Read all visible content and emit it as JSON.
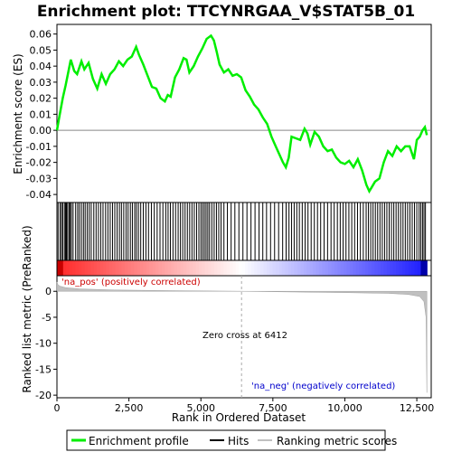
{
  "chart_data": {
    "type": "line",
    "title": "Enrichment plot: TTCYNRGAA_V$STAT5B_01",
    "top_panel": {
      "ylabel": "Enrichment score (ES)",
      "ylim": [
        -0.045,
        0.066
      ],
      "yticks": [
        -0.04,
        -0.03,
        -0.02,
        -0.01,
        0.0,
        0.01,
        0.02,
        0.03,
        0.04,
        0.05,
        0.06
      ],
      "ytick_labels": [
        "-0.04",
        "-0.03",
        "-0.02",
        "-0.01",
        "0.00",
        "0.01",
        "0.02",
        "0.03",
        "0.04",
        "0.05",
        "0.06"
      ],
      "series": [
        {
          "name": "Enrichment profile",
          "color": "#00ee00",
          "x": [
            0,
            80,
            200,
            300,
            480,
            600,
            700,
            850,
            950,
            1100,
            1250,
            1400,
            1550,
            1700,
            1850,
            2000,
            2150,
            2300,
            2450,
            2600,
            2750,
            2850,
            3000,
            3150,
            3300,
            3450,
            3600,
            3750,
            3850,
            3950,
            4100,
            4250,
            4400,
            4500,
            4600,
            4750,
            4900,
            5050,
            5200,
            5350,
            5450,
            5550,
            5650,
            5800,
            5950,
            6100,
            6250,
            6400,
            6550,
            6700,
            6850,
            7000,
            7150,
            7300,
            7450,
            7600,
            7750,
            7850,
            7950,
            8050,
            8150,
            8300,
            8450,
            8600,
            8700,
            8800,
            8950,
            9100,
            9250,
            9400,
            9550,
            9700,
            9850,
            10000,
            10150,
            10300,
            10450,
            10600,
            10750,
            10850,
            10950,
            11050,
            11200,
            11350,
            11500,
            11650,
            11800,
            11950,
            12100,
            12250,
            12400,
            12500,
            12600,
            12700,
            12780,
            12850
          ],
          "y": [
            0.0,
            0.008,
            0.02,
            0.028,
            0.044,
            0.037,
            0.035,
            0.043,
            0.038,
            0.042,
            0.032,
            0.026,
            0.035,
            0.029,
            0.035,
            0.038,
            0.043,
            0.04,
            0.044,
            0.046,
            0.052,
            0.047,
            0.041,
            0.034,
            0.027,
            0.026,
            0.02,
            0.018,
            0.022,
            0.021,
            0.033,
            0.038,
            0.045,
            0.044,
            0.036,
            0.04,
            0.046,
            0.051,
            0.057,
            0.059,
            0.056,
            0.049,
            0.041,
            0.036,
            0.038,
            0.034,
            0.035,
            0.033,
            0.025,
            0.021,
            0.016,
            0.013,
            0.008,
            0.004,
            -0.004,
            -0.01,
            -0.016,
            -0.02,
            -0.023,
            -0.017,
            -0.004,
            -0.005,
            -0.006,
            0.001,
            -0.002,
            -0.009,
            -0.001,
            -0.004,
            -0.01,
            -0.013,
            -0.012,
            -0.017,
            -0.02,
            -0.021,
            -0.019,
            -0.023,
            -0.018,
            -0.025,
            -0.034,
            -0.038,
            -0.035,
            -0.032,
            -0.03,
            -0.02,
            -0.013,
            -0.016,
            -0.01,
            -0.013,
            -0.01,
            -0.01,
            -0.018,
            -0.006,
            -0.004,
            0.0,
            0.002,
            -0.003
          ]
        }
      ]
    },
    "hits_panel": {
      "name": "Hits",
      "hit_positions": [
        40,
        110,
        160,
        200,
        260,
        300,
        330,
        370,
        420,
        460,
        500,
        560,
        650,
        720,
        780,
        850,
        920,
        980,
        1050,
        1120,
        1190,
        1280,
        1360,
        1440,
        1520,
        1600,
        1690,
        1770,
        1850,
        1930,
        2010,
        2090,
        2170,
        2240,
        2320,
        2400,
        2470,
        2550,
        2620,
        2700,
        2760,
        2830,
        2910,
        3000,
        3090,
        3180,
        3280,
        3380,
        3480,
        3580,
        3680,
        3780,
        3860,
        3940,
        4030,
        4120,
        4210,
        4290,
        4370,
        4450,
        4530,
        4610,
        4690,
        4770,
        4850,
        4930,
        5000,
        5060,
        5120,
        5180,
        5240,
        5300,
        5380,
        5460,
        5540,
        5620,
        5700,
        5800,
        5920,
        6050,
        6180,
        6320,
        6460,
        6600,
        6740,
        6880,
        7020,
        7150,
        7280,
        7420,
        7560,
        7700,
        7840,
        7960,
        8060,
        8150,
        8240,
        8330,
        8420,
        8520,
        8620,
        8720,
        8830,
        8940,
        9050,
        9160,
        9280,
        9400,
        9520,
        9630,
        9740,
        9840,
        9940,
        10040,
        10140,
        10240,
        10340,
        10440,
        10540,
        10640,
        10740,
        10820,
        10900,
        10980,
        11060,
        11140,
        11220,
        11300,
        11380,
        11460,
        11540,
        11620,
        11700,
        11780,
        11860,
        11940,
        12020,
        12100,
        12180,
        12260,
        12340,
        12420,
        12500,
        12580,
        12640,
        12700,
        12750,
        12800
      ]
    },
    "bottom_panel": {
      "ylabel": "Ranked list metric (PreRanked)",
      "xlabel": "Rank in Ordered Dataset",
      "ylim": [
        -20.5,
        3
      ],
      "yticks": [
        0,
        -5,
        -10,
        -15,
        -20
      ],
      "ytick_labels": [
        "0",
        "-5",
        "-10",
        "-15",
        "-20"
      ],
      "series": [
        {
          "name": "Ranking metric scores",
          "color": "#c0c0c0",
          "x": [
            0,
            30,
            100,
            300,
            800,
            2000,
            4000,
            6412,
            8000,
            10000,
            11500,
            12200,
            12600,
            12750,
            12820,
            12850
          ],
          "y": [
            1.8,
            1.3,
            1.0,
            0.7,
            0.45,
            0.25,
            0.12,
            0.0,
            -0.12,
            -0.25,
            -0.4,
            -0.6,
            -1.0,
            -2.0,
            -5.0,
            -19.5
          ]
        }
      ],
      "annotations": [
        "'na_pos' (positively correlated)",
        "Zero cross at 6412",
        "'na_neg' (negatively correlated)"
      ]
    },
    "x_axis": {
      "xlim": [
        0,
        13000
      ],
      "xticks": [
        0,
        2500,
        5000,
        7500,
        10000,
        12500
      ],
      "xtick_labels": [
        "0",
        "2,500",
        "5,000",
        "7,500",
        "10,000",
        "12,500"
      ]
    },
    "zero_cross": 6412,
    "dataset_size": 12850,
    "legend": [
      {
        "label": "Enrichment profile",
        "color": "#00ee00"
      },
      {
        "label": "Hits",
        "color": "#000000"
      },
      {
        "label": "Ranking metric scores",
        "color": "#c0c0c0"
      }
    ]
  }
}
